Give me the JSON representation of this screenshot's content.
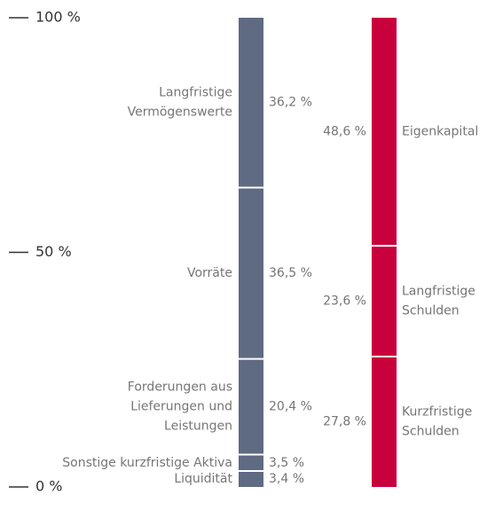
{
  "chart_data": {
    "type": "stacked_bar",
    "ylim": [
      0,
      100
    ],
    "yticks": [
      {
        "value": 0,
        "label": "0 %"
      },
      {
        "value": 50,
        "label": "50 %"
      },
      {
        "value": 100,
        "label": "100 %"
      }
    ],
    "bars": [
      {
        "color": "#5f6a83",
        "segments": [
          {
            "name": [
              "Liquidität"
            ],
            "value": 3.4,
            "value_label": "3,4 %"
          },
          {
            "name": [
              "Sonstige kurzfristige Aktiva"
            ],
            "value": 3.5,
            "value_label": "3,5 %"
          },
          {
            "name": [
              "Forderungen aus",
              "Lieferungen und",
              "Leistungen"
            ],
            "value": 20.4,
            "value_label": "20,4 %"
          },
          {
            "name": [
              "Vorräte"
            ],
            "value": 36.5,
            "value_label": "36,5 %"
          },
          {
            "name": [
              "Langfristige",
              "Vermögenswerte"
            ],
            "value": 36.2,
            "value_label": "36,2 %"
          }
        ]
      },
      {
        "color": "#c8003c",
        "segments": [
          {
            "name": [
              "Kurzfristige",
              "Schulden"
            ],
            "value": 27.8,
            "value_label": "27,8 %"
          },
          {
            "name": [
              "Langfristige",
              "Schulden"
            ],
            "value": 23.6,
            "value_label": "23,6 %"
          },
          {
            "name": [
              "Eigenkapital"
            ],
            "value": 48.6,
            "value_label": "48,6 %"
          }
        ]
      }
    ]
  }
}
